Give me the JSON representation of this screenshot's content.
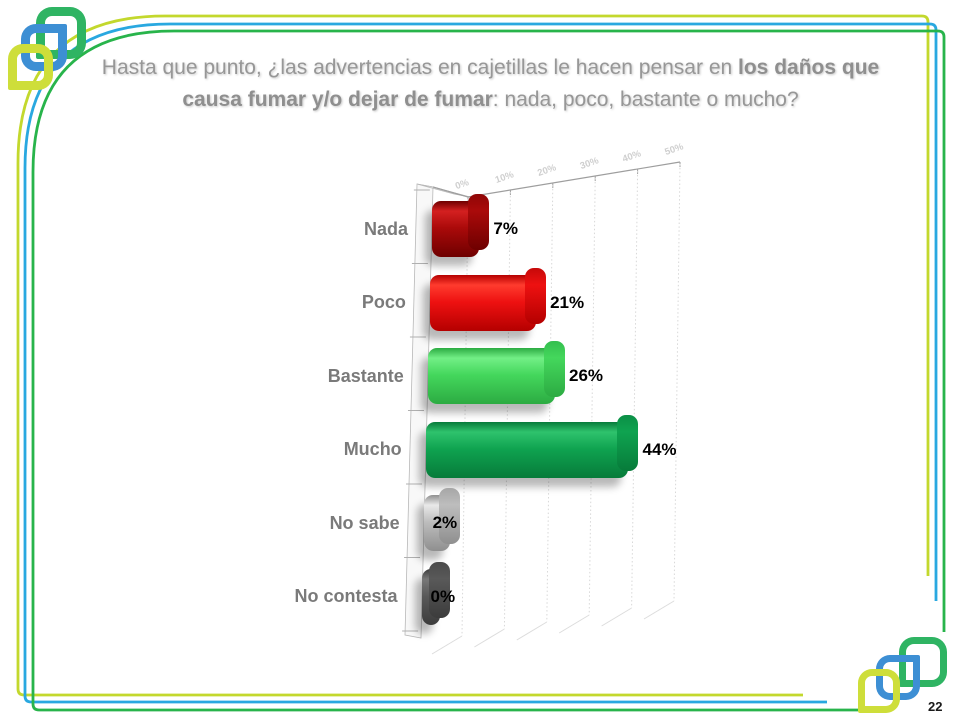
{
  "slide": {
    "page_number": "22",
    "title": {
      "line1_regular": "Hasta que punto, ¿las advertencias en cajetillas le hacen pensar en ",
      "line1_bold": "los daños que",
      "line2_bold": "causa fumar y/o dejar de fumar",
      "line2_regular": ": nada, poco, bastante o mucho?"
    }
  },
  "chart_data": {
    "type": "bar",
    "orientation": "horizontal",
    "style": "3d",
    "title": "",
    "xlabel": "",
    "ylabel": "",
    "categories": [
      "Nada",
      "Poco",
      "Bastante",
      "Mucho",
      "No sabe",
      "No contesta"
    ],
    "values": [
      7,
      21,
      26,
      44,
      2,
      0
    ],
    "value_labels": [
      "7%",
      "21%",
      "26%",
      "44%",
      "2%",
      "0%"
    ],
    "x_ticks": [
      "0%",
      "10%",
      "20%",
      "30%",
      "40%",
      "50%"
    ],
    "xlim": [
      0,
      50
    ],
    "grid": true,
    "legend": false,
    "bar_colors": [
      {
        "name": "dark-red",
        "light": "#d42020",
        "base": "#aa0a0a",
        "dark": "#6e0000",
        "cap": "#8f0606"
      },
      {
        "name": "red",
        "light": "#ff3b2e",
        "base": "#ee1111",
        "dark": "#b40000",
        "cap": "#c60909"
      },
      {
        "name": "light-green",
        "light": "#72ef86",
        "base": "#44d75c",
        "dark": "#2cab42",
        "cap": "#33bf4e"
      },
      {
        "name": "green",
        "light": "#2fc36d",
        "base": "#0fa350",
        "dark": "#077b3a",
        "cap": "#0b8f46"
      },
      {
        "name": "silver",
        "light": "#e9e9e9",
        "base": "#bdbdbd",
        "dark": "#8f8f8f",
        "cap": "#a6a6a6"
      },
      {
        "name": "dark-gray",
        "light": "#787878",
        "base": "#595959",
        "dark": "#3c3c3c",
        "cap": "#4a4a4a"
      }
    ]
  },
  "branding": {
    "frame_yellow": "#c3d82d",
    "frame_blue": "#29a8e0",
    "frame_green": "#28b44b",
    "logo_green": "#2fb463",
    "logo_blue": "#3d8fd4",
    "logo_yellow": "#cede3a"
  }
}
